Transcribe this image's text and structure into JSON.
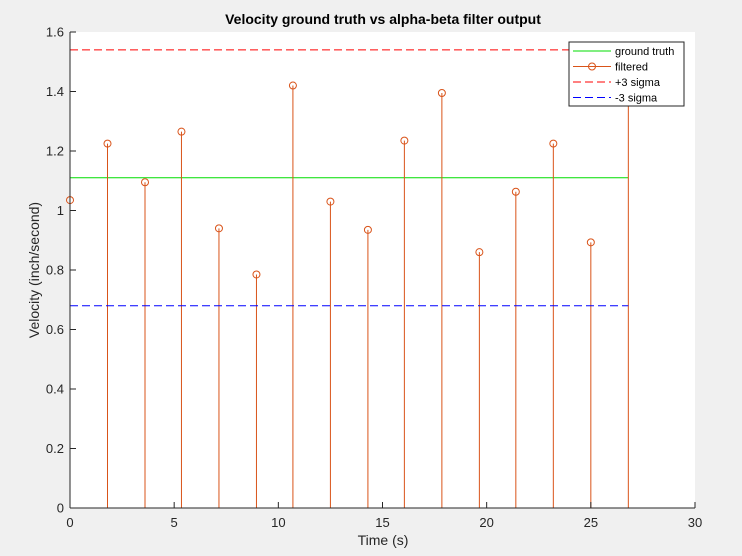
{
  "chart_data": {
    "type": "stem",
    "title": "Velocity ground truth vs alpha-beta filter output",
    "xlabel": "Time (s)",
    "ylabel": "Velocity (inch/second)",
    "xlim": [
      0,
      30
    ],
    "ylim": [
      0,
      1.6
    ],
    "xticks": [
      "0",
      "5",
      "10",
      "15",
      "20",
      "25",
      "30"
    ],
    "yticks": [
      "0",
      "0.2",
      "0.4",
      "0.6",
      "0.8",
      "1",
      "1.2",
      "1.4",
      "1.6"
    ],
    "grid": false,
    "legend_position": "top-right",
    "series": [
      {
        "name": "ground truth",
        "style": "solid-line",
        "color": "#00dd00",
        "x": [
          0,
          26.8
        ],
        "y": [
          1.11,
          1.11
        ]
      },
      {
        "name": "filtered",
        "style": "stem-circle",
        "color": "#d95319",
        "x": [
          0,
          1.8,
          3.6,
          5.35,
          7.15,
          8.95,
          10.7,
          12.5,
          14.3,
          16.05,
          17.85,
          19.65,
          21.4,
          23.2,
          25.0,
          26.8
        ],
        "y": [
          1.035,
          1.225,
          1.095,
          1.265,
          0.94,
          0.785,
          1.42,
          1.03,
          0.935,
          1.235,
          1.395,
          0.86,
          1.063,
          1.225,
          0.893,
          1.37
        ]
      },
      {
        "name": "+3 sigma",
        "style": "dashed-line",
        "color": "#ff0000",
        "x": [
          0,
          26.8
        ],
        "y": [
          1.54,
          1.54
        ]
      },
      {
        "name": "-3 sigma",
        "style": "dashed-line",
        "color": "#0000ff",
        "x": [
          0,
          26.8
        ],
        "y": [
          0.68,
          0.68
        ]
      }
    ]
  }
}
